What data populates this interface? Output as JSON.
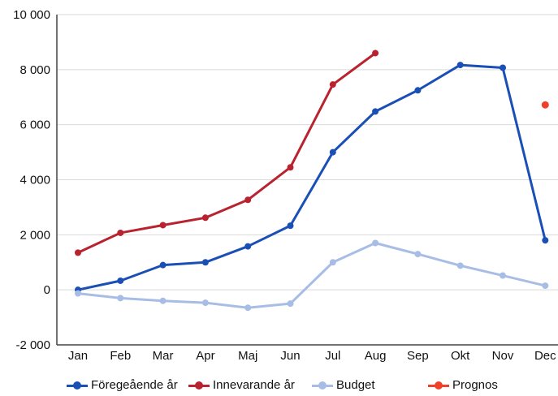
{
  "chart_data": {
    "type": "line",
    "categories": [
      "Jan",
      "Feb",
      "Mar",
      "Apr",
      "Maj",
      "Jun",
      "Jul",
      "Aug",
      "Sep",
      "Okt",
      "Nov",
      "Dec"
    ],
    "y_ticks": [
      "10 000",
      "8 000",
      "6 000",
      "4 000",
      "2 000",
      "0",
      "-2 000"
    ],
    "y_tick_values": [
      10000,
      8000,
      6000,
      4000,
      2000,
      0,
      -2000
    ],
    "ylim": [
      -2000,
      10000
    ],
    "grid": "horizontal",
    "legend_position": "bottom",
    "series": [
      {
        "name": "Föregeående år",
        "color": "#1a4fb5",
        "values": [
          0,
          330,
          900,
          1000,
          1580,
          2330,
          5000,
          6480,
          7250,
          8170,
          8070,
          1800
        ]
      },
      {
        "name": "Innevarande år",
        "color": "#b8232f",
        "values": [
          1350,
          2070,
          2350,
          2620,
          3270,
          4450,
          7460,
          8600,
          null,
          null,
          null,
          null
        ]
      },
      {
        "name": "Budget",
        "color": "#a8bde6",
        "values": [
          -130,
          -300,
          -400,
          -470,
          -650,
          -500,
          1000,
          1700,
          1300,
          880,
          520,
          150
        ]
      },
      {
        "name": "Prognos",
        "color": "#f0402a",
        "values": [
          null,
          null,
          null,
          null,
          null,
          null,
          null,
          null,
          null,
          null,
          null,
          6720
        ]
      }
    ]
  }
}
